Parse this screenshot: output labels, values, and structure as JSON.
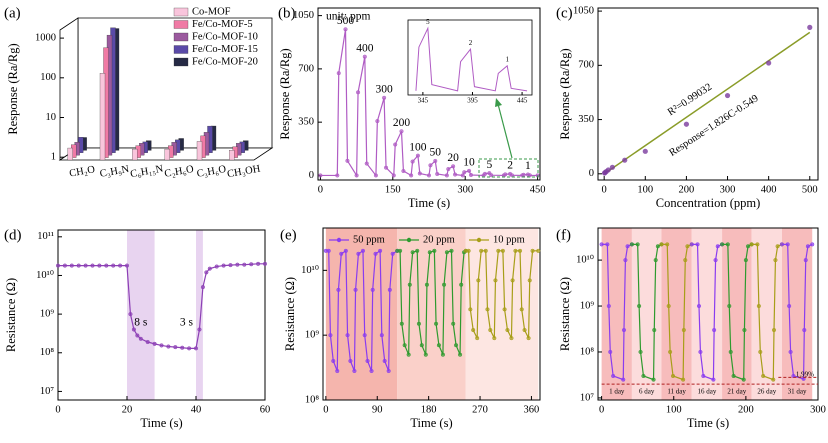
{
  "chart_data": [
    {
      "type": "bar",
      "panel": "(a)",
      "ylabel": "Response (Ra/Rg)",
      "log_y": true,
      "ylim": [
        0.85,
        1600
      ],
      "yticks": [
        1,
        10,
        100,
        1000
      ],
      "legend": "upper right",
      "categories": [
        "CH₂O",
        "C₃H₉N",
        "C₆H₁₅N",
        "C₂H₆O",
        "C₃H₆O",
        "CH₃OH"
      ],
      "series": [
        {
          "name": "Co-MOF",
          "color": "#f9c5dc",
          "values": [
            1.7,
            130,
            1.6,
            1.6,
            2.5,
            1.5
          ]
        },
        {
          "name": "Fe/Co-MOF-5",
          "color": "#f07aa5",
          "values": [
            1.8,
            500,
            1.7,
            1.7,
            3.0,
            1.6
          ]
        },
        {
          "name": "Fe/Co-MOF-10",
          "color": "#9b5a9e",
          "values": [
            1.8,
            900,
            1.7,
            1.8,
            3.2,
            1.7
          ]
        },
        {
          "name": "Fe/Co-MOF-15",
          "color": "#5a4aa8",
          "values": [
            2.1,
            1200,
            1.6,
            1.8,
            4.0,
            1.6
          ]
        },
        {
          "name": "Fe/Co-MOF-20",
          "color": "#262a45",
          "values": [
            1.8,
            1000,
            1.5,
            1.7,
            3.5,
            1.5
          ]
        }
      ]
    },
    {
      "type": "line",
      "panel": "(b)",
      "xlabel": "Time (s)",
      "ylabel": "Response (Ra/Rg)",
      "annotation": "unit: ppm",
      "color": "#b05cc4",
      "markers": true,
      "xlim": [
        -5,
        455
      ],
      "xticks": [
        0,
        150,
        300,
        450
      ],
      "ylim": [
        -30,
        1100
      ],
      "yticks": [
        0,
        350,
        700,
        1050
      ],
      "x": [
        0,
        35,
        38,
        52,
        56,
        75,
        78,
        92,
        96,
        115,
        118,
        132,
        136,
        152,
        155,
        168,
        172,
        188,
        191,
        202,
        206,
        225,
        228,
        238,
        242,
        262,
        265,
        275,
        279,
        295,
        298,
        308,
        312,
        338,
        341,
        350,
        354,
        380,
        383,
        393,
        397,
        418,
        421,
        430,
        434,
        450
      ],
      "values": [
        0,
        0,
        672,
        960,
        96,
        0,
        546,
        780,
        78,
        0,
        357,
        510,
        51,
        0,
        203,
        290,
        29,
        0,
        91,
        130,
        13,
        0,
        66.5,
        95,
        9.5,
        0,
        42,
        60,
        6,
        0,
        21,
        30,
        3,
        0,
        10.5,
        15,
        1.5,
        0,
        7,
        10,
        1,
        0,
        4.2,
        6,
        0.6,
        0
      ],
      "pulse_labels": [
        500,
        400,
        300,
        200,
        100,
        50,
        20,
        10,
        5,
        2,
        1
      ],
      "inset": {
        "xlim": [
          330,
          455
        ],
        "ylim": [
          -1,
          17
        ],
        "xticks": [
          345,
          395,
          445
        ]
      }
    },
    {
      "type": "scatter",
      "panel": "(c)",
      "xlabel": "Concentration (ppm)",
      "ylabel": "Response (Ra/Rg)",
      "color": "#7a3b9e",
      "xlim": [
        -15,
        520
      ],
      "xticks": [
        0,
        100,
        200,
        300,
        400,
        500
      ],
      "ylim": [
        -40,
        1070
      ],
      "yticks": [
        0,
        350,
        700,
        1050
      ],
      "x": [
        1,
        2,
        5,
        10,
        20,
        50,
        100,
        200,
        300,
        400,
        500
      ],
      "values": [
        5,
        8,
        14,
        25,
        42,
        88,
        145,
        320,
        505,
        715,
        945
      ],
      "fit": {
        "slope": 1.826,
        "intercept": -0.549,
        "color": "#8a9c28"
      },
      "annotations": [
        "R²=0.99032",
        "Response=1.826C-0.549"
      ]
    },
    {
      "type": "line",
      "panel": "(d)",
      "xlabel": "Time (s)",
      "ylabel": "Resistance (Ω)",
      "log_y": true,
      "markers": true,
      "color": "#8c3fb5",
      "xlim": [
        0,
        60
      ],
      "xticks": [
        0,
        20,
        40,
        60
      ],
      "ylim": [
        6000000.0,
        150000000000.0
      ],
      "yticks": [
        {
          "value": 10000000.0,
          "label": "10⁷"
        },
        {
          "value": 100000000.0,
          "label": "10⁸"
        },
        {
          "value": 1000000000.0,
          "label": "10⁹"
        },
        {
          "value": 10000000000.0,
          "label": "10¹⁰"
        },
        {
          "value": 100000000000.0,
          "label": "10¹¹"
        }
      ],
      "spans": [
        {
          "x": [
            20,
            28
          ],
          "label": "8 s"
        },
        {
          "x": [
            40,
            42
          ],
          "label": "3 s"
        }
      ],
      "x": [
        0,
        2,
        4,
        6,
        8,
        10,
        12,
        14,
        16,
        18,
        20,
        21,
        22,
        23,
        24,
        26,
        28,
        30,
        32,
        34,
        36,
        38,
        40,
        41,
        42,
        43,
        44,
        46,
        48,
        50,
        52,
        54,
        56,
        58,
        60
      ],
      "values": [
        18000000000.0,
        18000000000.0,
        18000000000.0,
        18000000000.0,
        18000000000.0,
        18000000000.0,
        18000000000.0,
        18000000000.0,
        18000000000.0,
        18000000000.0,
        18000000000.0,
        1000000000.0,
        400000000.0,
        280000000.0,
        230000000.0,
        190000000.0,
        170000000.0,
        155000000.0,
        145000000.0,
        140000000.0,
        135000000.0,
        130000000.0,
        130000000.0,
        400000000.0,
        5000000000.0,
        12000000000.0,
        15000000000.0,
        17000000000.0,
        18000000000.0,
        18500000000.0,
        19000000000.0,
        19000000000.0,
        19500000000.0,
        20000000000.0,
        20000000000.0
      ]
    },
    {
      "type": "line",
      "panel": "(e)",
      "xlabel": "Time (s)",
      "ylabel": "Resistance (Ω)",
      "log_y": true,
      "markers": true,
      "legend": "upper left",
      "xlim": [
        -5,
        375
      ],
      "xticks": [
        0,
        90,
        180,
        270,
        360
      ],
      "ylim": [
        100000000.0,
        45000000000.0
      ],
      "yticks": [
        {
          "value": 100000000.0,
          "label": "10⁸"
        },
        {
          "value": 1000000000.0,
          "label": "10⁹"
        },
        {
          "value": 10000000000.0,
          "label": "10¹⁰"
        }
      ],
      "series": [
        {
          "name": "50 ppm",
          "color": "#8a3cf0",
          "background": "#f5b5ad",
          "x": [
            0,
            5,
            8,
            13,
            20,
            22,
            27,
            35,
            38,
            43,
            50,
            52,
            57,
            65,
            68,
            73,
            80,
            82,
            87,
            95,
            98,
            103,
            110,
            112,
            117,
            125
          ],
          "values": [
            20000000000.0,
            20000000000.0,
            1000000000.0,
            400000000.0,
            280000000.0,
            5000000000.0,
            18000000000.0,
            20000000000.0,
            1000000000.0,
            400000000.0,
            280000000.0,
            5000000000.0,
            18000000000.0,
            20000000000.0,
            1000000000.0,
            400000000.0,
            280000000.0,
            5000000000.0,
            18000000000.0,
            20000000000.0,
            1000000000.0,
            400000000.0,
            280000000.0,
            5000000000.0,
            18000000000.0,
            20000000000.0
          ]
        },
        {
          "name": "20 ppm",
          "color": "#2e9a2e",
          "background": "#fad0c9",
          "x": [
            125,
            130,
            133,
            138,
            145,
            147,
            152,
            160,
            163,
            168,
            175,
            177,
            182,
            190,
            193,
            198,
            205,
            207,
            212,
            220,
            223,
            228,
            235,
            237,
            242,
            245
          ],
          "values": [
            20000000000.0,
            20000000000.0,
            1500000000.0,
            700000000.0,
            500000000.0,
            6000000000.0,
            19000000000.0,
            20000000000.0,
            1500000000.0,
            700000000.0,
            500000000.0,
            6000000000.0,
            19000000000.0,
            20000000000.0,
            1500000000.0,
            700000000.0,
            500000000.0,
            6000000000.0,
            19000000000.0,
            20000000000.0,
            1500000000.0,
            700000000.0,
            500000000.0,
            6000000000.0,
            19000000000.0,
            20000000000.0
          ]
        },
        {
          "name": "10 ppm",
          "color": "#a89e18",
          "background": "#fde6e2",
          "x": [
            245,
            250,
            253,
            258,
            265,
            267,
            272,
            280,
            283,
            288,
            295,
            297,
            302,
            310,
            313,
            318,
            325,
            327,
            332,
            340,
            343,
            348,
            355,
            357,
            362,
            372
          ],
          "values": [
            20000000000.0,
            20000000000.0,
            2500000000.0,
            1200000000.0,
            900000000.0,
            7000000000.0,
            20000000000.0,
            20000000000.0,
            2500000000.0,
            1200000000.0,
            900000000.0,
            7000000000.0,
            20000000000.0,
            20000000000.0,
            2500000000.0,
            1200000000.0,
            900000000.0,
            7000000000.0,
            20000000000.0,
            20000000000.0,
            2500000000.0,
            1200000000.0,
            900000000.0,
            7000000000.0,
            20000000000.0,
            20000000000.0
          ]
        }
      ]
    },
    {
      "type": "line",
      "panel": "(f)",
      "xlabel": "Time (s)",
      "ylabel": "Resistance (Ω)",
      "log_y": true,
      "markers": true,
      "legend": "bottom",
      "xlim": [
        -5,
        300
      ],
      "xticks": [
        0,
        100,
        200,
        300
      ],
      "ylim": [
        9000000.0,
        50000000000.0
      ],
      "yticks": [
        {
          "value": 10000000.0,
          "label": "10⁷"
        },
        {
          "value": 100000000.0,
          "label": "10⁸"
        },
        {
          "value": 1000000000.0,
          "label": "10⁹"
        },
        {
          "value": 10000000000.0,
          "label": "10¹⁰"
        }
      ],
      "hlines": [
        {
          "y": 20000000.0,
          "x": [
            0,
            300
          ]
        },
        {
          "y": 28000000.0,
          "x": [
            245,
            300
          ]
        }
      ],
      "annotation": "1.99%",
      "series": [
        {
          "name": "1 day",
          "color": "#8a3cf0",
          "background": "#f7bcbc",
          "x": [
            0,
            8,
            10,
            12,
            16,
            30,
            31,
            33,
            36,
            42
          ],
          "values": [
            22000000000.0,
            22000000000.0,
            1000000000.0,
            100000000.0,
            30000000.0,
            25000000.0,
            300000000.0,
            10000000000.0,
            20000000000.0,
            22000000000.0
          ]
        },
        {
          "name": "6 day",
          "color": "#2e9a2e",
          "background": "#fcdcdc",
          "x": [
            42,
            50,
            52,
            54,
            58,
            72,
            73,
            75,
            78,
            83
          ],
          "values": [
            22000000000.0,
            22000000000.0,
            1000000000.0,
            100000000.0,
            30000000.0,
            25000000.0,
            300000000.0,
            10000000000.0,
            20000000000.0,
            22000000000.0
          ]
        },
        {
          "name": "11 day",
          "color": "#a89e18",
          "background": "#f7bcbc",
          "x": [
            83,
            91,
            93,
            95,
            99,
            113,
            114,
            116,
            119,
            125
          ],
          "values": [
            22000000000.0,
            22000000000.0,
            1000000000.0,
            100000000.0,
            30000000.0,
            25000000.0,
            300000000.0,
            10000000000.0,
            20000000000.0,
            22000000000.0
          ]
        },
        {
          "name": "16 day",
          "color": "#8a3cf0",
          "background": "#fcdcdc",
          "x": [
            125,
            133,
            135,
            137,
            141,
            155,
            156,
            158,
            161,
            167
          ],
          "values": [
            22000000000.0,
            22000000000.0,
            1000000000.0,
            100000000.0,
            30000000.0,
            25000000.0,
            300000000.0,
            10000000000.0,
            20000000000.0,
            22000000000.0
          ]
        },
        {
          "name": "21 day",
          "color": "#2e9a2e",
          "background": "#f7bcbc",
          "x": [
            167,
            175,
            177,
            179,
            183,
            197,
            198,
            200,
            203,
            208
          ],
          "values": [
            22000000000.0,
            22000000000.0,
            1000000000.0,
            100000000.0,
            30000000.0,
            25000000.0,
            300000000.0,
            10000000000.0,
            20000000000.0,
            22000000000.0
          ]
        },
        {
          "name": "26 day",
          "color": "#a89e18",
          "background": "#fcdcdc",
          "x": [
            208,
            216,
            218,
            220,
            224,
            238,
            239,
            241,
            244,
            250
          ],
          "values": [
            22000000000.0,
            22000000000.0,
            1000000000.0,
            100000000.0,
            30000000.0,
            25000000.0,
            300000000.0,
            10000000000.0,
            20000000000.0,
            22000000000.0
          ]
        },
        {
          "name": "31 day",
          "color": "#8a3cf0",
          "background": "#f7bcbc",
          "x": [
            250,
            258,
            260,
            262,
            266,
            280,
            281,
            283,
            286,
            292
          ],
          "values": [
            22000000000.0,
            22000000000.0,
            1000000000.0,
            100000000.0,
            30000000.0,
            26000000.0,
            300000000.0,
            10000000000.0,
            20000000000.0,
            22000000000.0
          ]
        }
      ]
    }
  ]
}
